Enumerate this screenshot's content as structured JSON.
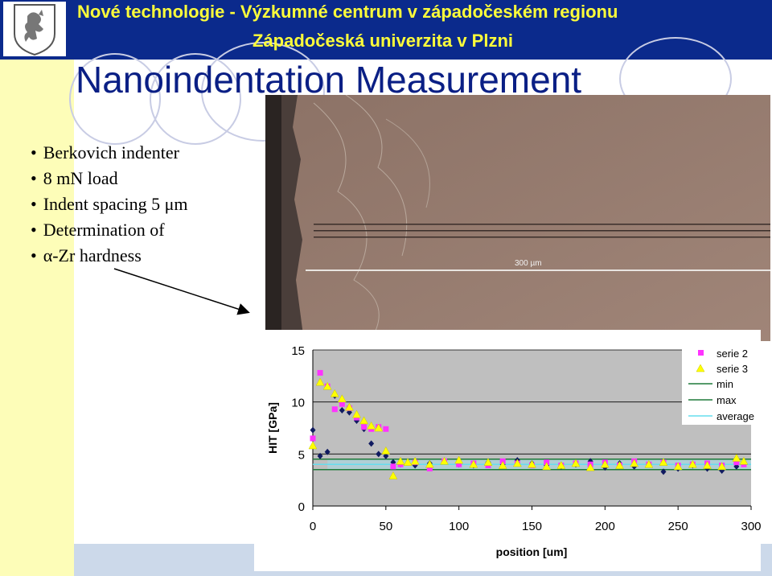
{
  "header": {
    "line1": "Nové technologie - Výzkumné centrum v západočeském regionu",
    "line2": "Západočeská univerzita v Plzni"
  },
  "title": "Nanoindentation Measurement",
  "bullets": [
    "Berkovich indenter",
    "8 mN load",
    "Indent spacing 5 μm",
    "Determination of",
    "α-Zr hardness"
  ],
  "micrograph": {
    "scale_label": "300 µm"
  },
  "colors": {
    "header_bg": "#0b2a8c",
    "header_text": "#fdfd3a",
    "title_text": "#0a1f85",
    "side_strip": "#fdfdb8"
  },
  "chart_data": {
    "type": "scatter",
    "xlabel": "position [um]",
    "ylabel": "HIT [GPa]",
    "xlim": [
      0,
      300
    ],
    "ylim": [
      0,
      15
    ],
    "xticks": [
      0,
      50,
      100,
      150,
      200,
      250,
      300
    ],
    "yticks": [
      0,
      5,
      10,
      15
    ],
    "legend_position": "top-right",
    "legend": [
      "serie 2",
      "serie 3",
      "min",
      "max",
      "average"
    ],
    "series": [
      {
        "name": "",
        "marker": "diamond",
        "color": "#101a60",
        "x": [
          0,
          5,
          10,
          15,
          20,
          25,
          30,
          35,
          40,
          45,
          50,
          55,
          60,
          70,
          80,
          90,
          100,
          110,
          120,
          130,
          140,
          150,
          160,
          170,
          180,
          190,
          200,
          210,
          220,
          230,
          240,
          250,
          260,
          270,
          280,
          290,
          295
        ],
        "y": [
          7.3,
          4.8,
          5.2,
          10.6,
          9.2,
          9.0,
          8.2,
          7.4,
          6.0,
          5.0,
          4.8,
          4.2,
          4.0,
          3.9,
          4.1,
          4.3,
          4.0,
          3.9,
          4.2,
          4.0,
          4.4,
          4.1,
          3.9,
          3.8,
          4.0,
          4.3,
          3.7,
          4.1,
          3.8,
          4.0,
          3.3,
          3.6,
          3.9,
          3.6,
          3.4,
          3.8,
          4.1
        ]
      },
      {
        "name": "serie 2",
        "marker": "square",
        "color": "#ff33ff",
        "x": [
          0,
          5,
          10,
          15,
          20,
          25,
          30,
          35,
          40,
          45,
          50,
          55,
          60,
          70,
          80,
          90,
          100,
          110,
          120,
          130,
          140,
          150,
          160,
          170,
          180,
          190,
          200,
          210,
          220,
          230,
          240,
          250,
          260,
          270,
          280,
          290,
          295
        ],
        "y": [
          6.5,
          12.8,
          11.5,
          9.3,
          9.8,
          9.4,
          8.5,
          7.6,
          7.4,
          7.6,
          7.4,
          3.8,
          4.0,
          4.2,
          3.6,
          4.3,
          4.0,
          4.1,
          3.9,
          4.3,
          4.1,
          3.9,
          4.2,
          3.9,
          4.1,
          4.0,
          4.2,
          3.9,
          4.3,
          4.0,
          4.2,
          3.9,
          4.0,
          4.1,
          3.9,
          4.2,
          4.0
        ]
      },
      {
        "name": "serie 3",
        "marker": "triangle",
        "color": "#ffff00",
        "x": [
          0,
          5,
          10,
          15,
          20,
          25,
          30,
          35,
          40,
          45,
          50,
          55,
          60,
          65,
          70,
          80,
          90,
          100,
          110,
          120,
          130,
          140,
          150,
          160,
          170,
          180,
          190,
          200,
          210,
          220,
          230,
          240,
          250,
          260,
          270,
          280,
          290,
          295
        ],
        "y": [
          5.8,
          11.9,
          11.5,
          10.8,
          10.3,
          9.5,
          8.8,
          8.2,
          7.7,
          7.5,
          5.3,
          2.9,
          4.3,
          4.2,
          4.3,
          4.0,
          4.3,
          4.4,
          4.0,
          4.2,
          3.9,
          4.1,
          4.0,
          3.8,
          3.9,
          4.1,
          3.7,
          4.0,
          3.9,
          4.1,
          4.0,
          4.2,
          3.8,
          4.0,
          3.9,
          3.8,
          4.6,
          4.3
        ]
      }
    ],
    "lines": [
      {
        "name": "min",
        "y": 3.5,
        "color": "#1f7a3a"
      },
      {
        "name": "max",
        "y": 4.5,
        "color": "#1f7a3a"
      },
      {
        "name": "average",
        "y": 4.0,
        "color": "#66ddee"
      }
    ]
  }
}
